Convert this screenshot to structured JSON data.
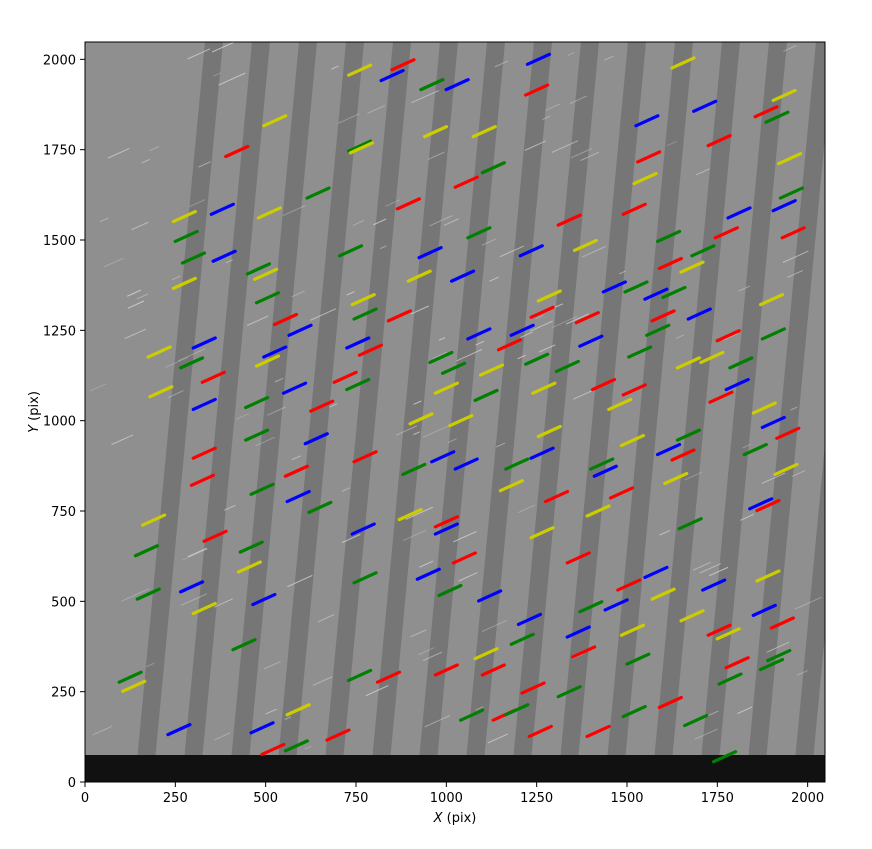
{
  "chart_data": {
    "type": "scatter",
    "title": "",
    "xlabel_var": "X",
    "xlabel_unit": "(pix)",
    "ylabel_var": "Y",
    "ylabel_unit": "(pix)",
    "xlim": [
      0,
      2048
    ],
    "ylim": [
      0,
      2048
    ],
    "xticks": [
      0,
      250,
      500,
      750,
      1000,
      1250,
      1500,
      1750,
      2000
    ],
    "yticks": [
      0,
      250,
      500,
      750,
      1000,
      1250,
      1500,
      1750,
      2000
    ],
    "grid": false,
    "legend": "none",
    "background": "grayscale detector image with diagonal star trails",
    "series": [
      {
        "color": "#0000ff",
        "streaks": [
          [
            850,
            1955
          ],
          [
            1030,
            1930
          ],
          [
            1255,
            2000
          ],
          [
            1555,
            1830
          ],
          [
            1715,
            1870
          ],
          [
            380,
            1585
          ],
          [
            385,
            1455
          ],
          [
            595,
            1250
          ],
          [
            955,
            1465
          ],
          [
            1045,
            1400
          ],
          [
            1235,
            1470
          ],
          [
            1465,
            1370
          ],
          [
            1810,
            1575
          ],
          [
            1935,
            1595
          ],
          [
            330,
            1215
          ],
          [
            330,
            1045
          ],
          [
            525,
            1190
          ],
          [
            580,
            1090
          ],
          [
            755,
            1215
          ],
          [
            1090,
            1240
          ],
          [
            1210,
            1250
          ],
          [
            1400,
            1220
          ],
          [
            1580,
            1350
          ],
          [
            1700,
            1295
          ],
          [
            1805,
            1100
          ],
          [
            1905,
            995
          ],
          [
            590,
            790
          ],
          [
            990,
            900
          ],
          [
            1055,
            880
          ],
          [
            1265,
            910
          ],
          [
            1440,
            860
          ],
          [
            1615,
            920
          ],
          [
            1870,
            770
          ],
          [
            295,
            540
          ],
          [
            495,
            505
          ],
          [
            770,
            700
          ],
          [
            950,
            575
          ],
          [
            1120,
            515
          ],
          [
            1230,
            450
          ],
          [
            1365,
            415
          ],
          [
            1470,
            490
          ],
          [
            1580,
            580
          ],
          [
            1740,
            545
          ],
          [
            1880,
            475
          ],
          [
            260,
            145
          ],
          [
            490,
            150
          ],
          [
            1000,
            700
          ],
          [
            640,
            950
          ]
        ]
      },
      {
        "color": "#ff0000",
        "streaks": [
          [
            880,
            1985
          ],
          [
            1250,
            1915
          ],
          [
            1560,
            1730
          ],
          [
            1755,
            1775
          ],
          [
            1885,
            1855
          ],
          [
            420,
            1745
          ],
          [
            1055,
            1660
          ],
          [
            895,
            1600
          ],
          [
            1340,
            1555
          ],
          [
            1520,
            1585
          ],
          [
            1620,
            1435
          ],
          [
            1775,
            1520
          ],
          [
            1960,
            1520
          ],
          [
            555,
            1280
          ],
          [
            870,
            1290
          ],
          [
            1265,
            1300
          ],
          [
            1390,
            1285
          ],
          [
            1600,
            1290
          ],
          [
            1780,
            1235
          ],
          [
            355,
            1120
          ],
          [
            790,
            1195
          ],
          [
            655,
            1040
          ],
          [
            720,
            1120
          ],
          [
            1175,
            1210
          ],
          [
            1435,
            1100
          ],
          [
            1520,
            1085
          ],
          [
            1760,
            1065
          ],
          [
            1945,
            965
          ],
          [
            330,
            910
          ],
          [
            325,
            835
          ],
          [
            585,
            860
          ],
          [
            775,
            900
          ],
          [
            1000,
            720
          ],
          [
            1305,
            790
          ],
          [
            1485,
            800
          ],
          [
            1655,
            905
          ],
          [
            1890,
            765
          ],
          [
            360,
            680
          ],
          [
            1050,
            620
          ],
          [
            1365,
            620
          ],
          [
            1505,
            545
          ],
          [
            1755,
            420
          ],
          [
            1930,
            440
          ],
          [
            1805,
            330
          ],
          [
            1380,
            360
          ],
          [
            1130,
            310
          ],
          [
            1240,
            260
          ],
          [
            840,
            290
          ],
          [
            1000,
            310
          ],
          [
            520,
            90
          ],
          [
            1160,
            185
          ],
          [
            1260,
            140
          ],
          [
            1420,
            140
          ],
          [
            1620,
            220
          ],
          [
            700,
            130
          ]
        ]
      },
      {
        "color": "#008000",
        "streaks": [
          [
            960,
            1930
          ],
          [
            1915,
            1840
          ],
          [
            645,
            1630
          ],
          [
            760,
            1760
          ],
          [
            1130,
            1700
          ],
          [
            1615,
            1510
          ],
          [
            1710,
            1470
          ],
          [
            1955,
            1630
          ],
          [
            280,
            1510
          ],
          [
            300,
            1450
          ],
          [
            480,
            1420
          ],
          [
            505,
            1340
          ],
          [
            735,
            1470
          ],
          [
            1090,
            1520
          ],
          [
            1525,
            1370
          ],
          [
            1630,
            1355
          ],
          [
            775,
            1295
          ],
          [
            985,
            1175
          ],
          [
            1250,
            1170
          ],
          [
            1585,
            1250
          ],
          [
            1905,
            1240
          ],
          [
            295,
            1160
          ],
          [
            475,
            1050
          ],
          [
            755,
            1100
          ],
          [
            1020,
            1145
          ],
          [
            1110,
            1070
          ],
          [
            1335,
            1150
          ],
          [
            1535,
            1190
          ],
          [
            1815,
            1160
          ],
          [
            475,
            960
          ],
          [
            490,
            810
          ],
          [
            650,
            760
          ],
          [
            910,
            865
          ],
          [
            1195,
            880
          ],
          [
            1430,
            880
          ],
          [
            1670,
            960
          ],
          [
            1855,
            920
          ],
          [
            170,
            640
          ],
          [
            175,
            520
          ],
          [
            460,
            650
          ],
          [
            440,
            380
          ],
          [
            775,
            565
          ],
          [
            1010,
            530
          ],
          [
            1210,
            395
          ],
          [
            1400,
            485
          ],
          [
            1530,
            340
          ],
          [
            1785,
            285
          ],
          [
            1900,
            325
          ],
          [
            125,
            290
          ],
          [
            585,
            100
          ],
          [
            760,
            295
          ],
          [
            1070,
            185
          ],
          [
            1195,
            200
          ],
          [
            1340,
            250
          ],
          [
            1520,
            195
          ],
          [
            1690,
            170
          ],
          [
            1770,
            70
          ],
          [
            1920,
            350
          ],
          [
            1675,
            715
          ]
        ]
      },
      {
        "color": "#cccc00",
        "streaks": [
          [
            760,
            1970
          ],
          [
            1655,
            1990
          ],
          [
            1935,
            1900
          ],
          [
            525,
            1830
          ],
          [
            970,
            1800
          ],
          [
            1105,
            1800
          ],
          [
            765,
            1755
          ],
          [
            1550,
            1670
          ],
          [
            1950,
            1725
          ],
          [
            275,
            1565
          ],
          [
            275,
            1380
          ],
          [
            510,
            1575
          ],
          [
            500,
            1405
          ],
          [
            925,
            1400
          ],
          [
            1385,
            1485
          ],
          [
            1680,
            1425
          ],
          [
            1900,
            1335
          ],
          [
            205,
            1190
          ],
          [
            505,
            1165
          ],
          [
            770,
            1335
          ],
          [
            1285,
            1345
          ],
          [
            1735,
            1175
          ],
          [
            210,
            1080
          ],
          [
            1000,
            1090
          ],
          [
            1270,
            1090
          ],
          [
            1480,
            1045
          ],
          [
            1670,
            1160
          ],
          [
            1880,
            1035
          ],
          [
            930,
            1005
          ],
          [
            1285,
            970
          ],
          [
            1515,
            945
          ],
          [
            1940,
            865
          ],
          [
            190,
            725
          ],
          [
            1180,
            820
          ],
          [
            1420,
            750
          ],
          [
            1635,
            840
          ],
          [
            455,
            595
          ],
          [
            900,
            740
          ],
          [
            1265,
            690
          ],
          [
            1600,
            520
          ],
          [
            1780,
            410
          ],
          [
            590,
            200
          ],
          [
            1110,
            355
          ],
          [
            1515,
            420
          ],
          [
            1680,
            460
          ],
          [
            330,
            480
          ],
          [
            1890,
            570
          ],
          [
            135,
            265
          ],
          [
            1040,
            1000
          ],
          [
            1125,
            1140
          ]
        ]
      }
    ]
  },
  "colors": {
    "blue": "#0000ff",
    "red": "#ff0000",
    "green": "#008000",
    "yellow": "#cccc00",
    "frame": "#000000"
  }
}
